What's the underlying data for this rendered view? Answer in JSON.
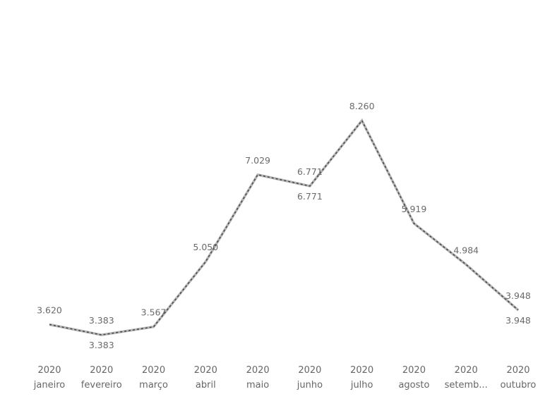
{
  "chart_data": {
    "type": "line",
    "categories": [
      [
        "2020",
        "janeiro"
      ],
      [
        "2020",
        "fevereiro"
      ],
      [
        "2020",
        "março"
      ],
      [
        "2020",
        "abril"
      ],
      [
        "2020",
        "maio"
      ],
      [
        "2020",
        "junho"
      ],
      [
        "2020",
        "julho"
      ],
      [
        "2020",
        "agosto"
      ],
      [
        "2020",
        "setemb..."
      ],
      [
        "2020",
        "outubro"
      ]
    ],
    "ylim": [
      3000,
      9000
    ],
    "series": [
      {
        "color": "#b5b5b5",
        "values": [
          3620,
          3383,
          3567,
          5050,
          7029,
          6771,
          8260,
          5919,
          4984,
          3948
        ],
        "value_labels": [
          "3.620",
          "3.383",
          "3.567",
          "5.050",
          "7.029",
          "6.771",
          "8.260",
          "5.919",
          "4.984",
          "3.948"
        ]
      },
      {
        "color": "#4a4a4a",
        "dashed": true,
        "values": [
          3620,
          3383,
          3567,
          5050,
          7029,
          6771,
          8260,
          5919,
          4984,
          3948
        ],
        "value_labels": [
          null,
          "3.383",
          null,
          null,
          null,
          "6.771",
          null,
          null,
          null,
          "3.948"
        ]
      }
    ]
  }
}
